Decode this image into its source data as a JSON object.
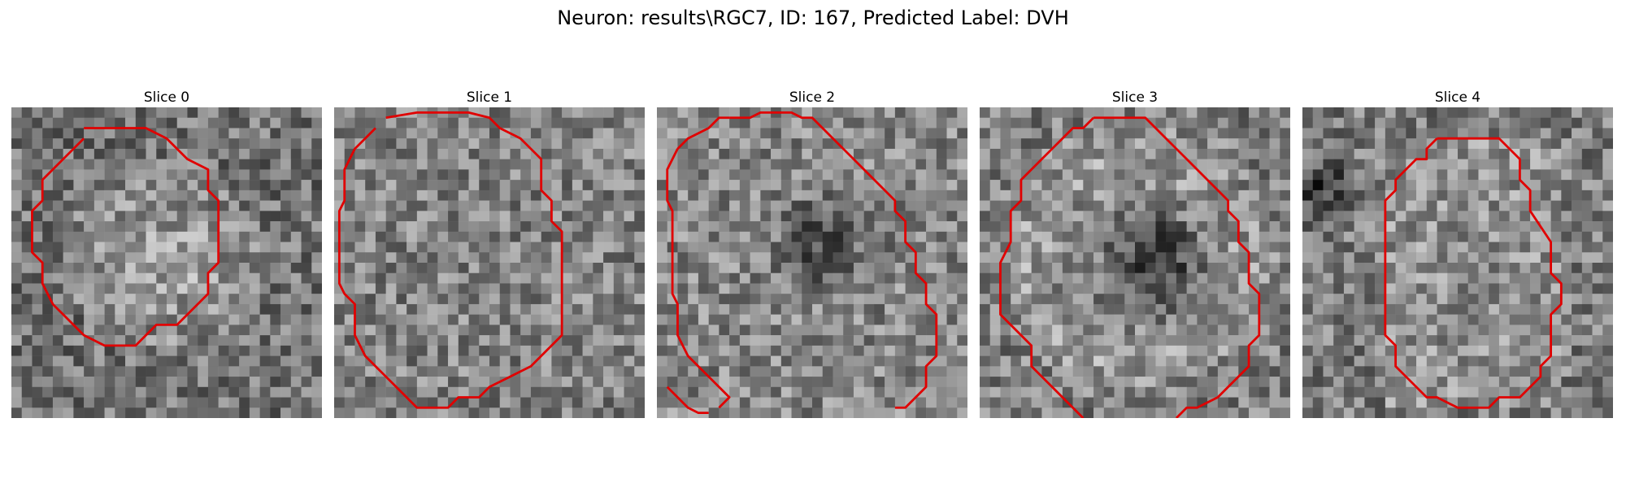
{
  "figure": {
    "title": "Neuron: results\\RGC7, ID: 167, Predicted Label: DVH"
  },
  "colors": {
    "contour": "#e00000",
    "background": "#ffffff"
  },
  "panels": [
    {
      "label": "Slice 0",
      "contours": [
        [
          [
            7,
            2
          ],
          [
            13,
            2
          ],
          [
            15,
            3
          ],
          [
            17,
            5
          ],
          [
            19,
            6
          ],
          [
            19,
            8
          ],
          [
            20,
            9
          ],
          [
            20,
            15
          ],
          [
            19,
            16
          ],
          [
            19,
            18
          ],
          [
            16,
            21
          ],
          [
            14,
            21
          ],
          [
            12,
            23
          ],
          [
            9,
            23
          ],
          [
            7,
            22
          ],
          [
            6,
            21
          ],
          [
            5,
            20
          ],
          [
            4,
            19
          ],
          [
            3,
            17
          ],
          [
            3,
            15
          ],
          [
            2,
            14
          ],
          [
            2,
            10
          ],
          [
            3,
            9
          ],
          [
            3,
            7
          ],
          [
            4,
            6
          ],
          [
            6,
            4
          ],
          [
            7,
            3
          ]
        ]
      ]
    },
    {
      "label": "Slice 1",
      "contours": [
        [
          [
            5,
            1
          ],
          [
            8,
            0.5
          ],
          [
            11,
            0.5
          ],
          [
            13,
            0.5
          ],
          [
            15,
            1
          ],
          [
            16,
            2
          ],
          [
            18,
            3
          ],
          [
            19,
            4
          ],
          [
            20,
            5
          ],
          [
            20,
            8
          ],
          [
            21,
            9
          ],
          [
            21,
            11
          ],
          [
            22,
            12
          ],
          [
            22,
            22
          ],
          [
            20,
            24
          ],
          [
            19,
            25
          ],
          [
            17,
            26
          ],
          [
            15,
            27
          ],
          [
            14,
            28
          ],
          [
            12,
            28
          ],
          [
            11,
            29
          ],
          [
            8,
            29
          ],
          [
            7,
            28
          ],
          [
            6,
            27
          ],
          [
            5,
            26
          ],
          [
            4,
            25
          ],
          [
            3,
            24
          ],
          [
            2,
            22
          ],
          [
            2,
            19
          ],
          [
            1,
            18
          ],
          [
            0.5,
            17
          ],
          [
            0.5,
            10
          ],
          [
            1,
            9
          ],
          [
            1,
            6
          ],
          [
            2,
            4
          ],
          [
            3,
            3
          ],
          [
            4,
            2
          ]
        ]
      ]
    },
    {
      "label": "Slice 2",
      "contours": [
        [
          [
            7,
            1
          ],
          [
            9,
            1
          ],
          [
            10,
            0.5
          ],
          [
            13,
            0.5
          ],
          [
            14,
            1
          ],
          [
            15,
            1
          ],
          [
            16,
            2
          ],
          [
            17,
            3
          ],
          [
            18,
            4
          ],
          [
            19,
            5
          ],
          [
            20,
            6
          ],
          [
            21,
            7
          ],
          [
            22,
            8
          ],
          [
            23,
            9
          ],
          [
            23,
            10
          ],
          [
            24,
            11
          ],
          [
            24,
            13
          ],
          [
            25,
            14
          ],
          [
            25,
            16
          ],
          [
            26,
            17
          ],
          [
            26,
            19
          ],
          [
            27,
            20
          ],
          [
            27,
            24
          ],
          [
            26,
            25
          ],
          [
            26,
            27
          ],
          [
            25,
            28
          ],
          [
            24,
            29
          ],
          [
            23,
            29
          ]
        ],
        [
          [
            1,
            27
          ],
          [
            2,
            28
          ],
          [
            3,
            29
          ],
          [
            4,
            29.5
          ],
          [
            5,
            29.5
          ]
        ],
        [
          [
            2,
            4
          ],
          [
            3,
            3
          ],
          [
            5,
            2
          ],
          [
            6,
            1
          ],
          [
            7,
            1
          ]
        ],
        [
          [
            2,
            4
          ],
          [
            1,
            6
          ],
          [
            1,
            9
          ],
          [
            1.5,
            10
          ],
          [
            1.5,
            18
          ],
          [
            2,
            19
          ],
          [
            2,
            22
          ],
          [
            3,
            24
          ],
          [
            4,
            25
          ],
          [
            5,
            26
          ],
          [
            6,
            27
          ],
          [
            7,
            28
          ],
          [
            6,
            29
          ]
        ]
      ]
    },
    {
      "label": "Slice 3",
      "contours": [
        [
          [
            11,
            1
          ],
          [
            16,
            1
          ],
          [
            17,
            2
          ],
          [
            18,
            3
          ],
          [
            19,
            4
          ],
          [
            20,
            5
          ],
          [
            21,
            6
          ],
          [
            22,
            7
          ],
          [
            23,
            8
          ],
          [
            24,
            9
          ],
          [
            24,
            10
          ],
          [
            25,
            11
          ],
          [
            25,
            13
          ],
          [
            26,
            14
          ],
          [
            26,
            17
          ],
          [
            27,
            18
          ],
          [
            27,
            22
          ],
          [
            26,
            23
          ],
          [
            26,
            25
          ],
          [
            25,
            26
          ],
          [
            24,
            27
          ],
          [
            23,
            28
          ],
          [
            21,
            29
          ],
          [
            20,
            29
          ],
          [
            19,
            30
          ]
        ],
        [
          [
            11,
            1
          ],
          [
            10,
            2
          ],
          [
            9,
            2
          ],
          [
            8,
            3
          ],
          [
            7,
            4
          ],
          [
            6,
            5
          ],
          [
            5,
            6
          ],
          [
            4,
            7
          ],
          [
            4,
            9
          ],
          [
            3,
            10
          ],
          [
            3,
            13
          ],
          [
            2,
            15
          ],
          [
            2,
            20
          ],
          [
            3,
            21
          ],
          [
            4,
            22
          ],
          [
            5,
            23
          ],
          [
            5,
            25
          ],
          [
            6,
            26
          ],
          [
            7,
            27
          ],
          [
            8,
            28
          ],
          [
            9,
            29
          ],
          [
            10,
            30
          ]
        ]
      ]
    },
    {
      "label": "Slice 4",
      "contours": [
        [
          [
            13,
            3
          ],
          [
            19,
            3
          ],
          [
            20,
            4
          ],
          [
            21,
            5
          ],
          [
            21,
            7
          ],
          [
            22,
            8
          ],
          [
            22,
            10
          ],
          [
            24,
            13
          ],
          [
            24,
            15
          ],
          [
            24,
            16
          ],
          [
            25,
            17
          ],
          [
            25,
            19
          ],
          [
            24,
            20
          ],
          [
            24,
            24
          ],
          [
            23,
            25
          ],
          [
            23,
            26
          ],
          [
            21,
            28
          ],
          [
            19,
            28
          ],
          [
            18,
            29
          ],
          [
            15,
            29
          ],
          [
            13,
            28
          ],
          [
            12,
            28
          ],
          [
            10,
            26
          ],
          [
            9,
            25
          ],
          [
            9,
            23
          ],
          [
            8,
            22
          ],
          [
            8,
            20
          ],
          [
            8,
            9
          ],
          [
            9,
            8
          ],
          [
            9,
            7
          ],
          [
            10,
            6
          ],
          [
            11,
            5
          ],
          [
            12,
            5
          ],
          [
            12,
            4
          ],
          [
            13,
            3
          ]
        ]
      ]
    }
  ]
}
